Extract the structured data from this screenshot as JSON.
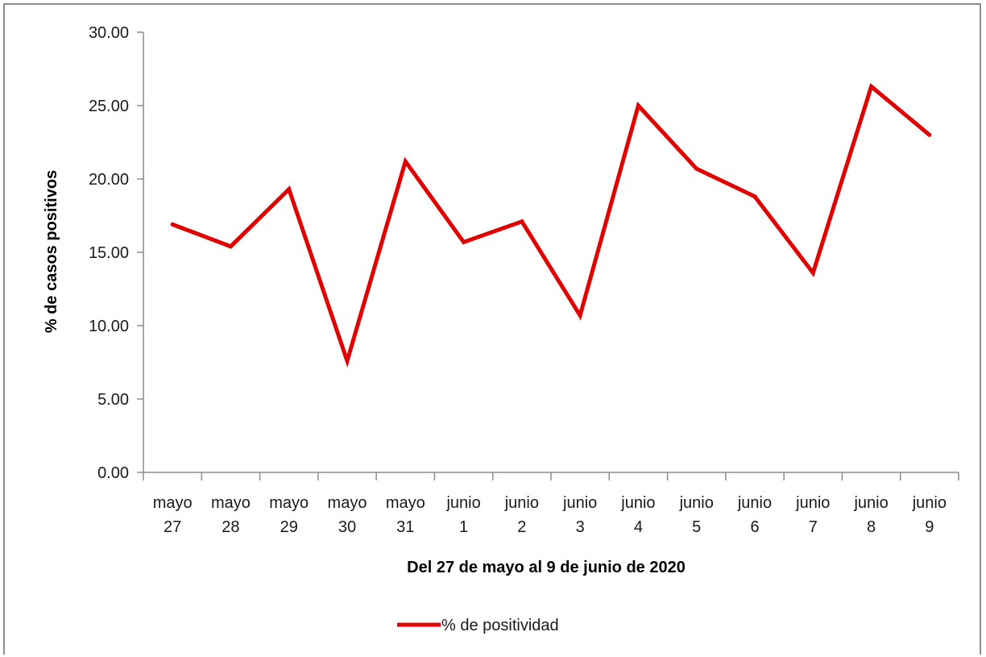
{
  "chart_data": {
    "type": "line",
    "title": "",
    "xlabel": "Del 27 de mayo al 9 de junio de 2020",
    "ylabel": "% de casos positivos",
    "ylim": [
      0,
      30
    ],
    "yticks": [
      "0.00",
      "5.00",
      "10.00",
      "15.00",
      "20.00",
      "25.00",
      "30.00"
    ],
    "categories": [
      [
        "mayo",
        "27"
      ],
      [
        "mayo",
        "28"
      ],
      [
        "mayo",
        "29"
      ],
      [
        "mayo",
        "30"
      ],
      [
        "mayo",
        "31"
      ],
      [
        "junio",
        "1"
      ],
      [
        "junio",
        "2"
      ],
      [
        "junio",
        "3"
      ],
      [
        "junio",
        "4"
      ],
      [
        "junio",
        "5"
      ],
      [
        "junio",
        "6"
      ],
      [
        "junio",
        "7"
      ],
      [
        "junio",
        "8"
      ],
      [
        "junio",
        "9"
      ]
    ],
    "series": [
      {
        "name": "% de positividad",
        "color": "#e00000",
        "values": [
          16.9,
          15.4,
          19.3,
          7.6,
          21.2,
          15.7,
          17.1,
          10.7,
          25.0,
          20.7,
          18.8,
          13.6,
          26.3,
          23.0
        ]
      }
    ],
    "grid": false,
    "legend_position": "bottom"
  }
}
